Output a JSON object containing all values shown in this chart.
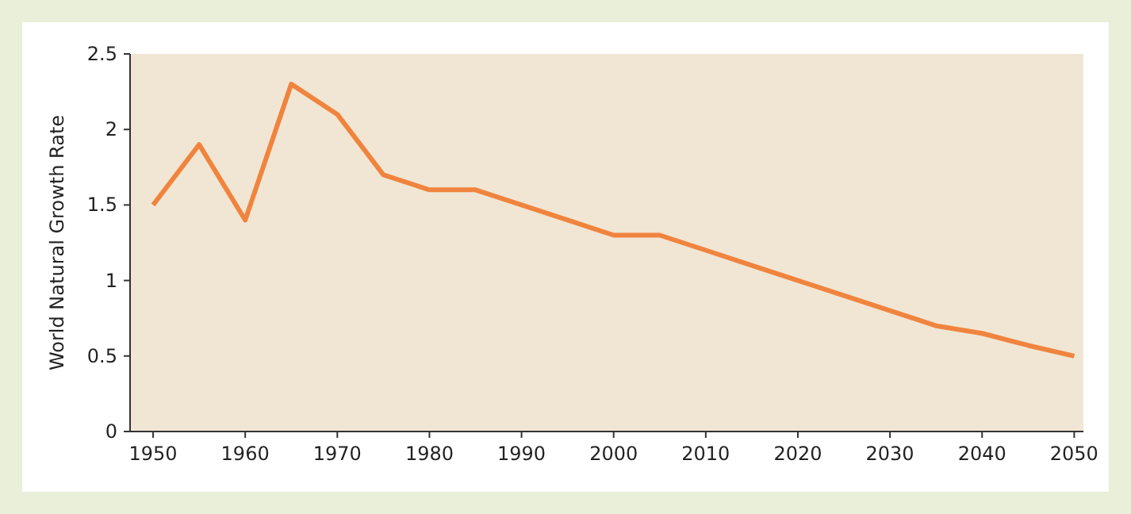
{
  "chart_data": {
    "type": "line",
    "ylabel": "World Natural Growth Rate",
    "x": [
      1950,
      1955,
      1960,
      1965,
      1970,
      1975,
      1980,
      1985,
      1990,
      1995,
      2000,
      2005,
      2010,
      2015,
      2020,
      2025,
      2030,
      2035,
      2040,
      2045,
      2050
    ],
    "series": [
      {
        "color": "#f0843e",
        "values": [
          1.5,
          1.9,
          1.4,
          2.3,
          2.1,
          1.7,
          1.6,
          1.6,
          1.5,
          1.4,
          1.3,
          1.3,
          1.2,
          1.1,
          1.0,
          0.9,
          0.8,
          0.7,
          0.65,
          0.57,
          0.5
        ]
      }
    ],
    "xlim": [
      1947.5,
      2051
    ],
    "xticks": [
      1950,
      1960,
      1970,
      1980,
      1990,
      2000,
      2010,
      2020,
      2030,
      2040,
      2050
    ],
    "ylim": [
      0,
      2.5
    ],
    "yticks": [
      0,
      {
        "value": 0.5,
        "label": "0.5"
      },
      1,
      {
        "value": 1.5,
        "label": "1.5"
      },
      2,
      {
        "value": 2.5,
        "label": "2.5"
      }
    ],
    "grid": false,
    "marker": "none",
    "line_style": "solid"
  }
}
